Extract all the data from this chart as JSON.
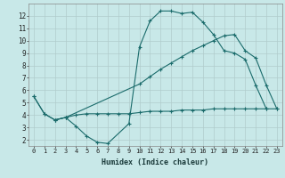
{
  "bg_color": "#c8e8e8",
  "grid_color": "#b0cccc",
  "line_color": "#1a6b6b",
  "xlabel": "Humidex (Indice chaleur)",
  "ylim": [
    1.5,
    13.0
  ],
  "xlim": [
    -0.5,
    23.5
  ],
  "yticks": [
    2,
    3,
    4,
    5,
    6,
    7,
    8,
    9,
    10,
    11,
    12
  ],
  "xticks": [
    0,
    1,
    2,
    3,
    4,
    5,
    6,
    7,
    8,
    9,
    10,
    11,
    12,
    13,
    14,
    15,
    16,
    17,
    18,
    19,
    20,
    21,
    22,
    23
  ],
  "line1_x": [
    0,
    1,
    2,
    3,
    4,
    5,
    6,
    7,
    9,
    10,
    11,
    12,
    13,
    14,
    15,
    16,
    17,
    18,
    19,
    20,
    21,
    22
  ],
  "line1_y": [
    5.5,
    4.1,
    3.6,
    3.8,
    3.1,
    2.3,
    1.8,
    1.7,
    3.3,
    9.5,
    11.6,
    12.4,
    12.4,
    12.2,
    12.3,
    11.5,
    10.5,
    9.2,
    9.0,
    8.5,
    6.4,
    4.5
  ],
  "line2_x": [
    0,
    1,
    2,
    3,
    4,
    5,
    6,
    7,
    8,
    9,
    10,
    11,
    12,
    13,
    14,
    15,
    16,
    17,
    18,
    19,
    20,
    21,
    22,
    23
  ],
  "line2_y": [
    5.5,
    4.1,
    3.6,
    3.8,
    4.0,
    4.1,
    4.1,
    4.1,
    4.1,
    4.1,
    4.2,
    4.3,
    4.3,
    4.3,
    4.4,
    4.4,
    4.4,
    4.5,
    4.5,
    4.5,
    4.5,
    4.5,
    4.5,
    4.5
  ],
  "line3_x": [
    2,
    3,
    10,
    11,
    12,
    13,
    14,
    15,
    16,
    17,
    18,
    19,
    20,
    21,
    22,
    23
  ],
  "line3_y": [
    3.6,
    3.8,
    6.5,
    7.1,
    7.7,
    8.2,
    8.7,
    9.2,
    9.6,
    10.0,
    10.4,
    10.5,
    9.2,
    8.6,
    6.4,
    4.5
  ],
  "xlabel_fontsize": 6.0,
  "tick_fontsize": 5.0,
  "ytick_fontsize": 5.5
}
